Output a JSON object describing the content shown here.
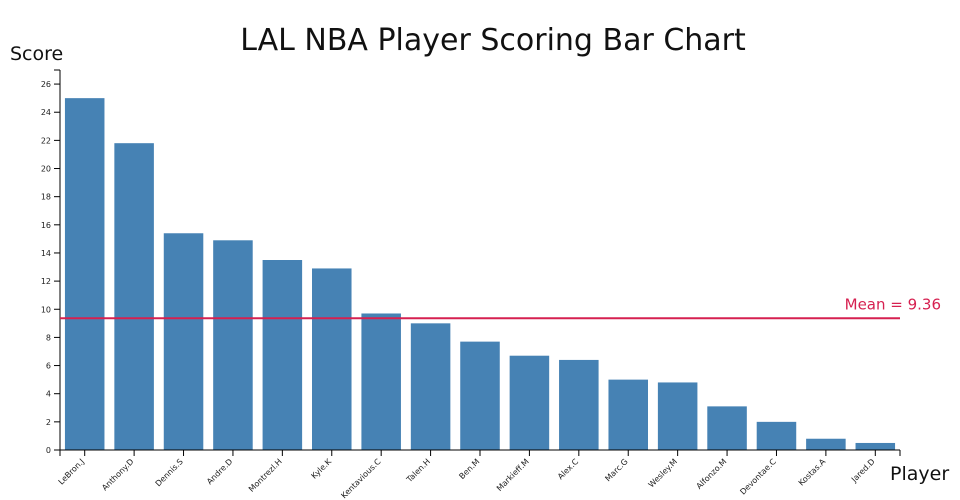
{
  "chart_data": {
    "type": "bar",
    "title": "LAL NBA Player Scoring Bar Chart",
    "xlabel": "Player",
    "ylabel": "Score",
    "ylim": [
      0,
      27
    ],
    "yticks": [
      0,
      2,
      4,
      6,
      8,
      10,
      12,
      14,
      16,
      18,
      20,
      22,
      24,
      26
    ],
    "categories": [
      "LeBron.J",
      "Anthony.D",
      "Dennis.S",
      "Andre.D",
      "Montrezl.H",
      "Kyle.K",
      "Kentavious.C",
      "Talen.H",
      "Ben.M",
      "Markieff.M",
      "Alex.C",
      "Marc.G",
      "Wesley.M",
      "Alfonzo.M",
      "Devontae.C",
      "Kostas.A",
      "Jared.D"
    ],
    "values": [
      25.0,
      21.8,
      15.4,
      14.9,
      13.5,
      12.9,
      9.7,
      9.0,
      7.7,
      6.7,
      6.4,
      5.0,
      4.8,
      3.1,
      2.0,
      0.8,
      0.5
    ],
    "mean": 9.36,
    "mean_label": "Mean = 9.36",
    "grid": false,
    "colors": {
      "bar": "#4682b4",
      "mean": "#d62050"
    }
  }
}
